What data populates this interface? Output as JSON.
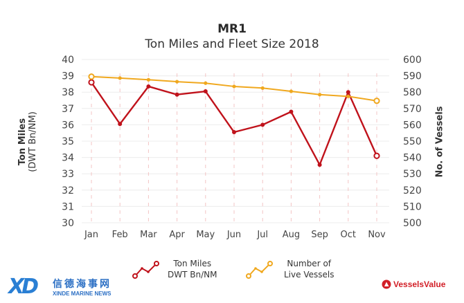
{
  "chart_data": {
    "type": "line",
    "title": "MR1",
    "subtitle": "Ton Miles and Fleet Size 2018",
    "categories": [
      "Jan",
      "Feb",
      "Mar",
      "Apr",
      "May",
      "Jun",
      "Jul",
      "Aug",
      "Sep",
      "Oct",
      "Nov"
    ],
    "series": [
      {
        "name": "Ton Miles DWT Bn/NM",
        "axis": "left",
        "color": "#c0121b",
        "values": [
          38.6,
          36.05,
          38.35,
          37.85,
          38.05,
          35.55,
          36.0,
          36.8,
          33.55,
          38.0,
          34.1
        ]
      },
      {
        "name": "Number of Live Vessels",
        "axis": "right",
        "color": "#f0a81e",
        "values": [
          589.5,
          588.6,
          587.6,
          586.4,
          585.5,
          583.5,
          582.5,
          580.5,
          578.5,
          577.4,
          574.7
        ]
      }
    ],
    "ylabel_left": [
      "Ton Miles",
      "(DWT Bn/NM)"
    ],
    "ylabel_right": "No. of Vessels",
    "ylim_left": [
      30,
      40
    ],
    "ylim_right": [
      500,
      600
    ],
    "yticks_left": [
      "30",
      "31",
      "32",
      "33",
      "34",
      "35",
      "36",
      "37",
      "38",
      "39",
      "40"
    ],
    "yticks_right": [
      "500",
      "510",
      "520",
      "530",
      "540",
      "550",
      "560",
      "570",
      "580",
      "590",
      "600"
    ],
    "grid": true,
    "legend_position": "bottom",
    "legend": [
      {
        "line1": "Ton Miles",
        "line2": "DWT Bn/NM",
        "color": "#c0121b"
      },
      {
        "line1": "Number of",
        "line2": "Live Vessels",
        "color": "#f0a81e"
      }
    ]
  },
  "footer": {
    "left_logo_mark": "XD",
    "left_logo_cn": "信德海事网",
    "left_logo_en": "XINDE MARINE NEWS",
    "right_logo": "VesselsValue",
    "right_logo_color": "#d21f27"
  }
}
